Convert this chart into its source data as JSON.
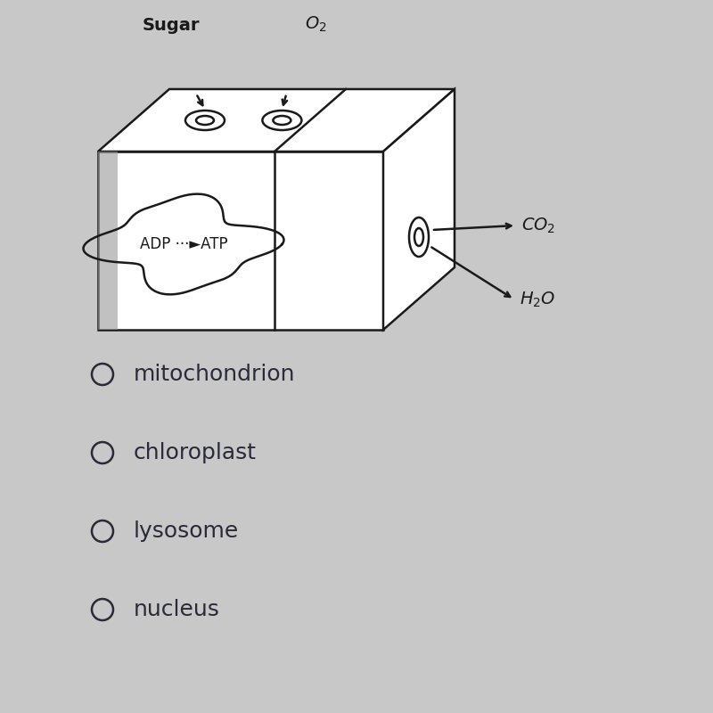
{
  "bg_color": "#c8c8c8",
  "text_color": "#2a2a3a",
  "options": [
    "mitochondrion",
    "chloroplast",
    "lysosome",
    "nucleus"
  ],
  "option_fontsize": 18,
  "circle_r": 12,
  "diagram": {
    "sugar_label": "Sugar",
    "o2_label": "O₂",
    "co2_label": "CO₂",
    "h2o_label": "H₂O"
  },
  "layout": {
    "fig_w": 8.0,
    "fig_h": 8.0,
    "dpi": 100
  }
}
